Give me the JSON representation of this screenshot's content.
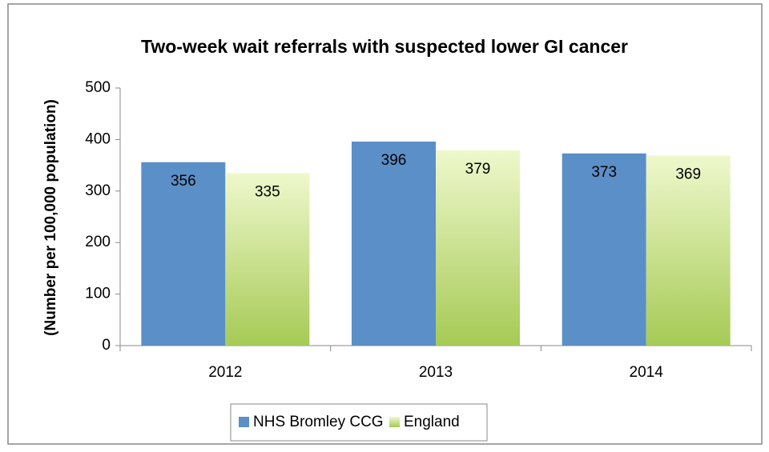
{
  "chart_data": {
    "type": "bar",
    "title": "Two-week wait referrals with suspected lower GI cancer",
    "y_label": "(Number per 100,000 population)",
    "categories": [
      "2012",
      "2013",
      "2014"
    ],
    "series": [
      {
        "name": "NHS Bromley CCG",
        "color": "#5b8fc7",
        "values": [
          356,
          396,
          373
        ]
      },
      {
        "name": "England",
        "color": "#b5d569",
        "values": [
          335,
          379,
          369
        ]
      }
    ],
    "ylim": [
      0,
      500
    ],
    "yticks": [
      0,
      100,
      200,
      300,
      400,
      500
    ],
    "grid": false,
    "legend": "bottom"
  }
}
